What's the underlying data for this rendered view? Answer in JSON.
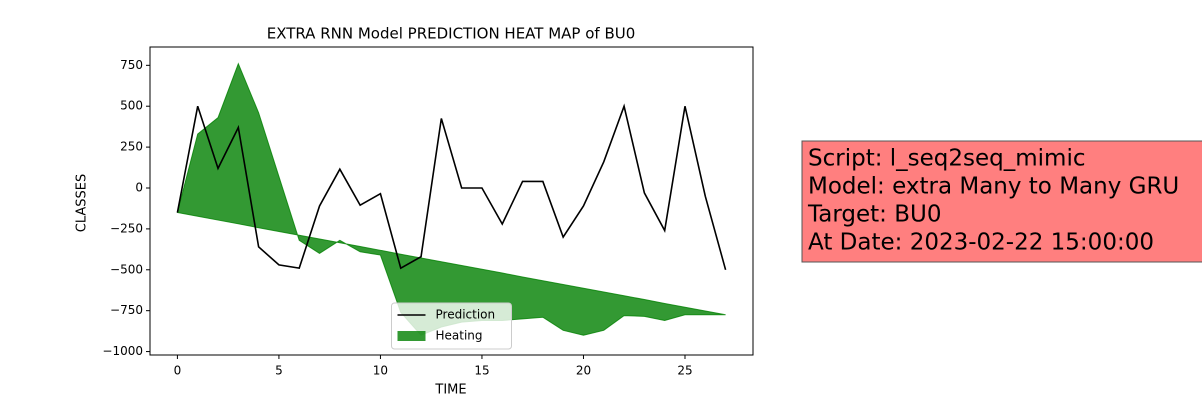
{
  "chart_data": {
    "type": "line",
    "title": "EXTRA RNN Model PREDICTION HEAT MAP of BU0",
    "x_label": "TIME",
    "y_label": "CLASSES",
    "x": [
      0,
      1,
      2,
      3,
      4,
      5,
      6,
      7,
      8,
      9,
      10,
      11,
      12,
      13,
      14,
      15,
      16,
      17,
      18,
      19,
      20,
      21,
      22,
      23,
      24,
      25,
      26,
      27
    ],
    "series": [
      {
        "name": "Prediction",
        "color": "#000000",
        "values": [
          -150,
          500,
          120,
          370,
          -360,
          -470,
          -490,
          -110,
          115,
          -105,
          -35,
          -490,
          -420,
          425,
          0,
          0,
          -220,
          40,
          40,
          -300,
          -110,
          160,
          500,
          -30,
          -260,
          500,
          -50,
          -500
        ]
      },
      {
        "name": "Heating",
        "color": "#008000",
        "fill": true,
        "values": [
          -150,
          330,
          430,
          760,
          460,
          70,
          -320,
          -400,
          -320,
          -390,
          -410,
          -760,
          -900,
          -850,
          -820,
          -810,
          -810,
          -800,
          -790,
          -870,
          -900,
          -870,
          -780,
          -785,
          -810,
          -775,
          -775,
          -775
        ],
        "base": [
          -150,
          -173,
          -196,
          -219,
          -243,
          -266,
          -289,
          -312,
          -335,
          -358,
          -381,
          -405,
          -428,
          -451,
          -474,
          -497,
          -520,
          -544,
          -567,
          -590,
          -613,
          -636,
          -659,
          -682,
          -706,
          -729,
          -752,
          -775
        ]
      }
    ],
    "xlim": [
      -1.35,
      28.35
    ],
    "xticks": [
      0,
      5,
      10,
      15,
      20,
      25
    ],
    "ylim": [
      -1021,
      862
    ],
    "yticks": [
      {
        "value": -1000,
        "label": "−1000"
      },
      {
        "value": -750,
        "label": "−750"
      },
      {
        "value": -500,
        "label": "−500"
      },
      {
        "value": -250,
        "label": "−250"
      },
      0,
      250,
      500,
      750
    ],
    "legend": "lower center",
    "annotation": {
      "lines": [
        "Script: l_seq2seq_mimic",
        "Model: extra Many to Many GRU",
        "Target: BU0",
        "At Date: 2023-02-22 15:00:00"
      ],
      "color": "#ff7f7f"
    }
  }
}
